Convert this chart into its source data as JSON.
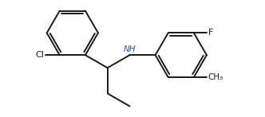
{
  "bg_color": "#ffffff",
  "bond_color": "#1a1a1a",
  "atom_color_cl": "#1a1a1a",
  "atom_color_f": "#1a1a1a",
  "atom_color_n": "#2a5aaa",
  "atom_color_c": "#1a1a1a",
  "bond_lw": 1.4,
  "font_size": 8.0,
  "xlim": [
    0.0,
    10.5
  ],
  "ylim": [
    0.0,
    5.5
  ],
  "ring_r": 1.0
}
